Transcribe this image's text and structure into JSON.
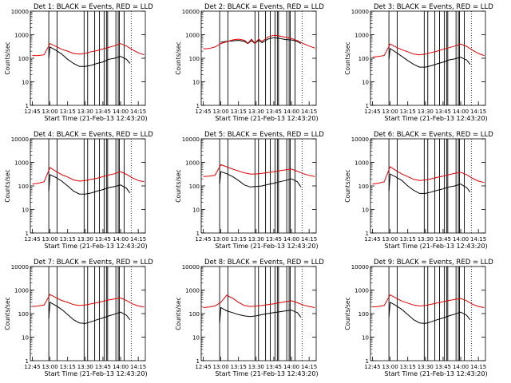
{
  "figure": {
    "xlabel": "Start Time (21-Feb-13 12:43:20)",
    "ylabel": "Counts/sec",
    "colors": {
      "events": "#000000",
      "lld": "#e00000",
      "axes": "#000000",
      "background": "#ffffff"
    }
  },
  "chart_data": [
    {
      "type": "line",
      "title": "Det 1: BLACK = Events, RED = LLD",
      "xlabel": "Start Time (21-Feb-13 12:43:20)",
      "ylabel": "Counts/sec",
      "x_ticks": [
        "12:45",
        "13:00",
        "13:15",
        "13:30",
        "13:45",
        "14:00",
        "14:15"
      ],
      "y_ticks": [
        "1",
        "10",
        "100",
        "1000",
        "10000"
      ],
      "ylim": [
        1,
        10000
      ],
      "yscale": "log",
      "series": [
        {
          "x": [
            "12:59",
            "13:00",
            "13:05",
            "13:10",
            "13:15",
            "13:20",
            "13:25",
            "13:30",
            "13:35",
            "13:40",
            "13:45",
            "13:50",
            "13:55",
            "14:00",
            "14:05",
            "14:08"
          ],
          "values": [
            100,
            300,
            220,
            150,
            90,
            60,
            45,
            45,
            50,
            60,
            70,
            90,
            100,
            120,
            90,
            60
          ]
        },
        {
          "x": [
            "12:45",
            "12:50",
            "12:55",
            "13:00",
            "13:05",
            "13:10",
            "13:15",
            "13:20",
            "13:25",
            "13:30",
            "13:35",
            "13:40",
            "13:45",
            "13:50",
            "13:55",
            "14:00",
            "14:05",
            "14:10",
            "14:15",
            "14:20"
          ],
          "values": [
            130,
            130,
            140,
            420,
            320,
            240,
            200,
            160,
            150,
            160,
            190,
            210,
            250,
            290,
            340,
            420,
            330,
            230,
            170,
            140
          ]
        }
      ]
    },
    {
      "type": "line",
      "title": "Det 2: BLACK = Events, RED = LLD",
      "xlabel": "Start Time (21-Feb-13 12:43:20)",
      "ylabel": "Counts/sec",
      "x_ticks": [
        "12:45",
        "13:00",
        "13:15",
        "13:30",
        "13:45",
        "14:00",
        "14:15"
      ],
      "y_ticks": [
        "1",
        "10",
        "100",
        "1000",
        "10000"
      ],
      "ylim": [
        1,
        10000
      ],
      "yscale": "log",
      "series": [
        {
          "x": [
            "13:00",
            "13:05",
            "13:10",
            "13:15",
            "13:20",
            "13:23",
            "13:26",
            "13:29",
            "13:32",
            "13:35",
            "13:40",
            "13:45",
            "13:50",
            "13:55",
            "14:00",
            "14:05",
            "14:08"
          ],
          "values": [
            480,
            520,
            550,
            580,
            520,
            420,
            560,
            420,
            580,
            460,
            650,
            750,
            700,
            620,
            600,
            520,
            420
          ]
        },
        {
          "x": [
            "12:45",
            "12:50",
            "12:55",
            "13:00",
            "13:05",
            "13:10",
            "13:15",
            "13:20",
            "13:23",
            "13:26",
            "13:29",
            "13:32",
            "13:35",
            "13:40",
            "13:45",
            "13:50",
            "13:55",
            "14:00",
            "14:05",
            "14:10",
            "14:15",
            "14:20"
          ],
          "values": [
            250,
            260,
            300,
            420,
            500,
            600,
            650,
            580,
            430,
            640,
            430,
            650,
            520,
            800,
            950,
            880,
            780,
            700,
            560,
            420,
            330,
            270
          ]
        }
      ]
    },
    {
      "type": "line",
      "title": "Det 3: BLACK = Events, RED = LLD",
      "xlabel": "Start Time (21-Feb-13 12:43:20)",
      "ylabel": "Counts/sec",
      "x_ticks": [
        "12:45",
        "13:00",
        "13:15",
        "13:30",
        "13:45",
        "14:00",
        "14:15"
      ],
      "y_ticks": [
        "1",
        "10",
        "100",
        "1000",
        "10000"
      ],
      "ylim": [
        1,
        10000
      ],
      "yscale": "log",
      "series": [
        {
          "x": [
            "12:59",
            "13:00",
            "13:05",
            "13:10",
            "13:15",
            "13:20",
            "13:25",
            "13:30",
            "13:35",
            "13:40",
            "13:45",
            "13:50",
            "13:55",
            "14:00",
            "14:05",
            "14:08"
          ],
          "values": [
            90,
            260,
            180,
            120,
            80,
            55,
            42,
            42,
            48,
            58,
            68,
            85,
            95,
            110,
            85,
            55
          ]
        },
        {
          "x": [
            "12:45",
            "12:50",
            "12:55",
            "13:00",
            "13:05",
            "13:10",
            "13:15",
            "13:20",
            "13:25",
            "13:30",
            "13:35",
            "13:40",
            "13:45",
            "13:50",
            "13:55",
            "14:00",
            "14:05",
            "14:10",
            "14:15",
            "14:20"
          ],
          "values": [
            110,
            120,
            130,
            400,
            300,
            230,
            190,
            150,
            140,
            150,
            175,
            200,
            240,
            280,
            330,
            400,
            320,
            220,
            160,
            130
          ]
        }
      ]
    },
    {
      "type": "line",
      "title": "Det 4: BLACK = Events, RED = LLD",
      "xlabel": "Start Time (21-Feb-13 12:43:20)",
      "ylabel": "Counts/sec",
      "x_ticks": [
        "12:45",
        "13:00",
        "13:15",
        "13:30",
        "13:45",
        "14:00",
        "14:15"
      ],
      "y_ticks": [
        "1",
        "10",
        "100",
        "1000",
        "10000"
      ],
      "ylim": [
        1,
        10000
      ],
      "yscale": "log",
      "series": [
        {
          "x": [
            "12:59",
            "13:00",
            "13:05",
            "13:10",
            "13:15",
            "13:20",
            "13:25",
            "13:30",
            "13:35",
            "13:40",
            "13:45",
            "13:50",
            "13:55",
            "14:00",
            "14:05",
            "14:08"
          ],
          "values": [
            60,
            300,
            230,
            160,
            100,
            60,
            45,
            45,
            50,
            60,
            70,
            85,
            95,
            110,
            80,
            50
          ]
        },
        {
          "x": [
            "12:45",
            "12:50",
            "12:55",
            "13:00",
            "13:05",
            "13:10",
            "13:15",
            "13:20",
            "13:25",
            "13:30",
            "13:35",
            "13:40",
            "13:45",
            "13:50",
            "13:55",
            "14:00",
            "14:05",
            "14:10",
            "14:15",
            "14:20"
          ],
          "values": [
            120,
            130,
            150,
            600,
            420,
            300,
            240,
            180,
            160,
            170,
            190,
            210,
            250,
            290,
            330,
            400,
            310,
            220,
            170,
            150
          ]
        }
      ]
    },
    {
      "type": "line",
      "title": "Det 5: BLACK = Events, RED = LLD",
      "xlabel": "Start Time (21-Feb-13 12:43:20)",
      "ylabel": "Counts/sec",
      "x_ticks": [
        "12:45",
        "13:00",
        "13:15",
        "13:30",
        "13:45",
        "14:00",
        "14:15"
      ],
      "y_ticks": [
        "1",
        "10",
        "100",
        "1000",
        "10000"
      ],
      "ylim": [
        1,
        10000
      ],
      "yscale": "log",
      "series": [
        {
          "x": [
            "12:59",
            "13:00",
            "13:05",
            "13:10",
            "13:15",
            "13:20",
            "13:25",
            "13:30",
            "13:35",
            "13:40",
            "13:45",
            "13:50",
            "13:55",
            "14:00",
            "14:05",
            "14:08"
          ],
          "values": [
            120,
            400,
            330,
            250,
            170,
            110,
            90,
            95,
            100,
            115,
            130,
            150,
            170,
            200,
            150,
            90
          ]
        },
        {
          "x": [
            "12:45",
            "12:50",
            "12:55",
            "13:00",
            "13:05",
            "13:10",
            "13:15",
            "13:20",
            "13:25",
            "13:30",
            "13:35",
            "13:40",
            "13:45",
            "13:50",
            "13:55",
            "14:00",
            "14:05",
            "14:10",
            "14:15",
            "14:20"
          ],
          "values": [
            250,
            260,
            280,
            800,
            650,
            520,
            430,
            360,
            320,
            320,
            340,
            370,
            400,
            440,
            480,
            520,
            420,
            330,
            280,
            250
          ]
        }
      ]
    },
    {
      "type": "line",
      "title": "Det 6: BLACK = Events, RED = LLD",
      "xlabel": "Start Time (21-Feb-13 12:43:20)",
      "ylabel": "Counts/sec",
      "x_ticks": [
        "12:45",
        "13:00",
        "13:15",
        "13:30",
        "13:45",
        "14:00",
        "14:15"
      ],
      "y_ticks": [
        "1",
        "10",
        "100",
        "1000",
        "10000"
      ],
      "ylim": [
        1,
        10000
      ],
      "yscale": "log",
      "series": [
        {
          "x": [
            "12:59",
            "13:00",
            "13:05",
            "13:10",
            "13:15",
            "13:20",
            "13:25",
            "13:30",
            "13:35",
            "13:40",
            "13:45",
            "13:50",
            "13:55",
            "14:00",
            "14:05",
            "14:08"
          ],
          "values": [
            60,
            320,
            240,
            170,
            100,
            65,
            48,
            48,
            55,
            65,
            75,
            90,
            100,
            120,
            85,
            55
          ]
        },
        {
          "x": [
            "12:45",
            "12:50",
            "12:55",
            "13:00",
            "13:05",
            "13:10",
            "13:15",
            "13:20",
            "13:25",
            "13:30",
            "13:35",
            "13:40",
            "13:45",
            "13:50",
            "13:55",
            "14:00",
            "14:05",
            "14:10",
            "14:15",
            "14:20"
          ],
          "values": [
            120,
            130,
            150,
            650,
            450,
            320,
            250,
            190,
            170,
            180,
            200,
            230,
            260,
            300,
            340,
            380,
            300,
            210,
            160,
            140
          ]
        }
      ]
    },
    {
      "type": "line",
      "title": "Det 7: BLACK = Events, RED = LLD",
      "xlabel": "Start Time (21-Feb-13 12:43:20)",
      "ylabel": "Counts/sec",
      "x_ticks": [
        "12:45",
        "13:00",
        "13:15",
        "13:30",
        "13:45",
        "14:00",
        "14:15"
      ],
      "y_ticks": [
        "1",
        "10",
        "100",
        "1000",
        "10000"
      ],
      "ylim": [
        1,
        10000
      ],
      "yscale": "log",
      "series": [
        {
          "x": [
            "12:59",
            "13:00",
            "13:05",
            "13:10",
            "13:15",
            "13:20",
            "13:25",
            "13:30",
            "13:35",
            "13:40",
            "13:45",
            "13:50",
            "13:55",
            "14:00",
            "14:05",
            "14:08"
          ],
          "values": [
            60,
            300,
            220,
            150,
            90,
            55,
            40,
            38,
            45,
            55,
            65,
            80,
            95,
            115,
            85,
            55
          ]
        },
        {
          "x": [
            "12:45",
            "12:50",
            "12:55",
            "13:00",
            "13:05",
            "13:10",
            "13:15",
            "13:20",
            "13:25",
            "13:30",
            "13:35",
            "13:40",
            "13:45",
            "13:50",
            "13:55",
            "14:00",
            "14:05",
            "14:10",
            "14:15",
            "14:20"
          ],
          "values": [
            200,
            210,
            230,
            650,
            480,
            360,
            300,
            240,
            220,
            230,
            260,
            290,
            330,
            380,
            420,
            460,
            360,
            260,
            210,
            190
          ]
        }
      ]
    },
    {
      "type": "line",
      "title": "Det 8: BLACK = Events, RED = LLD",
      "xlabel": "Start Time (21-Feb-13 12:43:20)",
      "ylabel": "Counts/sec",
      "x_ticks": [
        "12:45",
        "13:00",
        "13:15",
        "13:30",
        "13:45",
        "14:00",
        "14:15"
      ],
      "y_ticks": [
        "1",
        "10",
        "100",
        "1000",
        "10000"
      ],
      "ylim": [
        1,
        10000
      ],
      "yscale": "log",
      "series": [
        {
          "x": [
            "12:59",
            "13:00",
            "13:05",
            "13:10",
            "13:15",
            "13:20",
            "13:25",
            "13:30",
            "13:35",
            "13:40",
            "13:45",
            "13:50",
            "13:55",
            "14:00",
            "14:05",
            "14:08"
          ],
          "values": [
            40,
            180,
            130,
            110,
            90,
            80,
            75,
            80,
            90,
            100,
            110,
            120,
            130,
            140,
            110,
            70
          ]
        },
        {
          "x": [
            "12:45",
            "12:50",
            "12:55",
            "13:00",
            "13:05",
            "13:10",
            "13:15",
            "13:20",
            "13:25",
            "13:30",
            "13:35",
            "13:40",
            "13:45",
            "13:50",
            "13:55",
            "14:00",
            "14:05",
            "14:10",
            "14:15",
            "14:20"
          ],
          "values": [
            180,
            190,
            210,
            300,
            600,
            450,
            300,
            220,
            200,
            210,
            220,
            240,
            260,
            290,
            320,
            350,
            290,
            230,
            200,
            180
          ]
        }
      ]
    },
    {
      "type": "line",
      "title": "Det 9: BLACK = Events, RED = LLD",
      "xlabel": "Start Time (21-Feb-13 12:43:20)",
      "ylabel": "Counts/sec",
      "x_ticks": [
        "12:45",
        "13:00",
        "13:15",
        "13:30",
        "13:45",
        "14:00",
        "14:15"
      ],
      "y_ticks": [
        "1",
        "10",
        "100",
        "1000",
        "10000"
      ],
      "ylim": [
        1,
        10000
      ],
      "yscale": "log",
      "series": [
        {
          "x": [
            "12:59",
            "13:00",
            "13:05",
            "13:10",
            "13:15",
            "13:20",
            "13:25",
            "13:30",
            "13:35",
            "13:40",
            "13:45",
            "13:50",
            "13:55",
            "14:00",
            "14:05",
            "14:08"
          ],
          "values": [
            70,
            300,
            220,
            150,
            90,
            55,
            40,
            38,
            45,
            55,
            65,
            80,
            95,
            115,
            85,
            55
          ]
        },
        {
          "x": [
            "12:45",
            "12:50",
            "12:55",
            "13:00",
            "13:05",
            "13:10",
            "13:15",
            "13:20",
            "13:25",
            "13:30",
            "13:35",
            "13:40",
            "13:45",
            "13:50",
            "13:55",
            "14:00",
            "14:05",
            "14:10",
            "14:15",
            "14:20"
          ],
          "values": [
            190,
            200,
            220,
            620,
            460,
            340,
            280,
            230,
            210,
            220,
            250,
            280,
            320,
            360,
            400,
            440,
            350,
            250,
            200,
            180
          ]
        }
      ]
    }
  ]
}
